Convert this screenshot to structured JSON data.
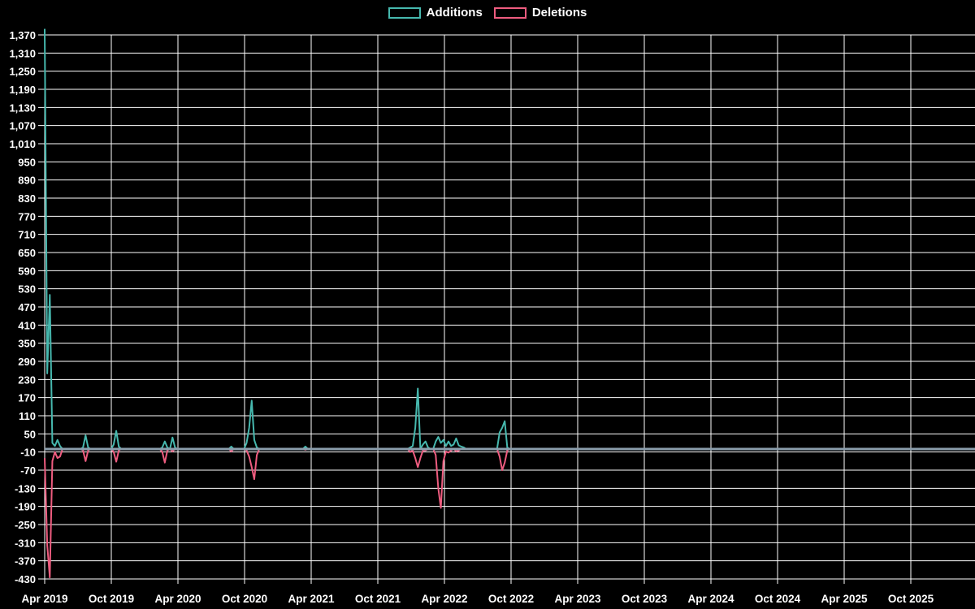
{
  "legend": {
    "items": [
      {
        "label": "Additions",
        "color": "#46b8ae"
      },
      {
        "label": "Deletions",
        "color": "#ee5c7f"
      }
    ]
  },
  "colors": {
    "background": "#000000",
    "grid": "#ffffff",
    "axis": "#ffffff",
    "text": "#ffffff",
    "zero_line": "#8a9dac",
    "additions": "#46b8ae",
    "deletions": "#ee5c7f"
  },
  "chart_data": {
    "type": "line",
    "title": "",
    "xlabel": "",
    "ylabel": "",
    "legend_position": "top-center",
    "grid": true,
    "x_axis": {
      "unit": "week",
      "start_label": "Apr 2019",
      "weeks_total": 365,
      "tick_every_weeks": 26.07,
      "tick_labels": [
        "Apr 2019",
        "Oct 2019",
        "Apr 2020",
        "Oct 2020",
        "Apr 2021",
        "Oct 2021",
        "Apr 2022",
        "Oct 2022",
        "Apr 2023",
        "Oct 2023",
        "Apr 2024",
        "Oct 2024",
        "Apr 2025",
        "Oct 2025"
      ]
    },
    "y_axis": {
      "min": -430,
      "max": 1370,
      "tick_interval": 60,
      "tick_labels": [
        "1,370",
        "1,310",
        "1,250",
        "1,190",
        "1,130",
        "1,070",
        "1,010",
        "950",
        "890",
        "830",
        "770",
        "710",
        "650",
        "590",
        "530",
        "470",
        "410",
        "350",
        "290",
        "230",
        "170",
        "110",
        "50",
        "-10",
        "-70",
        "-130",
        "-190",
        "-250",
        "-310",
        "-370",
        "-430"
      ]
    },
    "default_value": 0,
    "series": [
      {
        "name": "Additions",
        "color": "#46b8ae",
        "points": {
          "0": 1390,
          "1": 250,
          "2": 510,
          "3": 20,
          "4": 10,
          "5": 30,
          "6": 10,
          "15": 5,
          "16": 45,
          "17": 5,
          "27": 15,
          "28": 60,
          "29": 8,
          "46": 5,
          "47": 25,
          "48": 5,
          "50": 38,
          "51": 5,
          "73": 8,
          "79": 20,
          "80": 70,
          "81": 160,
          "82": 30,
          "83": 5,
          "102": 8,
          "143": 5,
          "144": 10,
          "145": 70,
          "146": 200,
          "147": 0,
          "148": 15,
          "149": 25,
          "150": 5,
          "153": 25,
          "154": 40,
          "155": 20,
          "156": 30,
          "157": 10,
          "158": 25,
          "159": 10,
          "160": 15,
          "161": 35,
          "162": 12,
          "163": 8,
          "164": 5,
          "178": 55,
          "179": 70,
          "180": 92,
          "181": 5
        }
      },
      {
        "name": "Deletions",
        "color": "#ee5c7f",
        "points": {
          "0": -30,
          "1": -318,
          "2": -425,
          "3": -40,
          "4": -10,
          "5": -30,
          "6": -25,
          "15": -5,
          "16": -40,
          "17": -5,
          "27": -10,
          "28": -42,
          "29": -5,
          "46": -10,
          "47": -45,
          "48": -5,
          "50": -8,
          "73": -8,
          "79": -5,
          "80": -25,
          "81": -60,
          "82": -100,
          "83": -20,
          "102": -3,
          "143": -10,
          "144": -5,
          "145": -30,
          "146": -60,
          "147": -30,
          "148": -5,
          "149": -5,
          "153": -20,
          "154": -130,
          "155": -195,
          "156": -40,
          "157": -8,
          "158": -12,
          "159": -5,
          "161": -8,
          "162": -5,
          "178": -25,
          "179": -70,
          "180": -45,
          "181": -5
        }
      }
    ]
  }
}
